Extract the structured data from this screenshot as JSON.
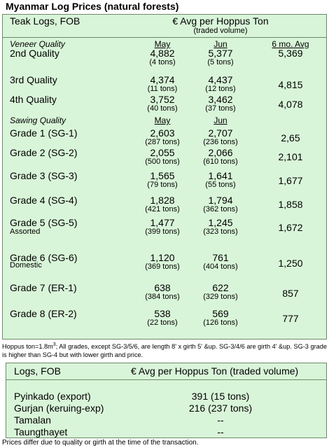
{
  "title": "Myanmar Log Prices (natural forests)",
  "teak": {
    "header": {
      "label": "Teak Logs, FOB",
      "unit": "€ Avg per Hoppus Ton",
      "unit_note": "(traded volume)"
    },
    "sections": [
      {
        "label": "Veneer Quality",
        "col_may": "May",
        "col_jun": "Jun",
        "col_avg": "6 mo. Avg",
        "rows": [
          {
            "name": "2nd Quality",
            "may": "4,882",
            "may_vol": "(4 tons)",
            "jun": "5,377",
            "jun_vol": "(5 tons)",
            "avg": "5,369"
          },
          {
            "name": "3rd Quality",
            "may": "4,374",
            "may_vol": "(11 tons)",
            "jun": "4,437",
            "jun_vol": "(12 tons)",
            "avg": "4,815"
          },
          {
            "name": "4th Quality",
            "may": "3,752",
            "may_vol": "(40 tons)",
            "jun": "3,462",
            "jun_vol": "(37 tons)",
            "avg": "4,078"
          }
        ]
      },
      {
        "label": "Sawing Quality",
        "col_may": "May",
        "col_jun": "Jun",
        "rows": [
          {
            "name": "Grade 1 (SG-1)",
            "may": "2,603",
            "may_vol": "(287 tons)",
            "jun": "2,707",
            "jun_vol": "(236 tons)",
            "avg": "2,65"
          },
          {
            "name": "Grade 2 (SG-2)",
            "may": "2,055",
            "may_vol": "(500 tons)",
            "jun": "2,066",
            "jun_vol": "(610 tons)",
            "avg": "2,101"
          },
          {
            "name": "Grade 3 (SG-3)",
            "may": "1,565",
            "may_vol": "(79 tons)",
            "jun": "1,641",
            "jun_vol": "(55 tons)",
            "avg": "1,677"
          },
          {
            "name": "Grade 4 (SG-4)",
            "may": "1,828",
            "may_vol": "(421 tons)",
            "jun": "1,794",
            "jun_vol": "(362 tons)",
            "avg": "1,858"
          },
          {
            "name": "Grade 5 (SG-5)",
            "sub": "Assorted",
            "may": "1,477",
            "may_vol": "(399 tons)",
            "jun": "1,245",
            "jun_vol": "(323 tons)",
            "avg": "1,672"
          },
          {
            "name": "Grade 6 (SG-6)",
            "sub": "Domestic",
            "may": "1,120",
            "may_vol": "(369 tons)",
            "jun": "761",
            "jun_vol": "(404 tons)",
            "avg": "1,250"
          },
          {
            "name": "Grade 7 (ER-1)",
            "may": "638",
            "may_vol": "(384 tons)",
            "jun": "622",
            "jun_vol": "(329 tons)",
            "avg": "857"
          },
          {
            "name": "Grade 8 (ER-2)",
            "may": "538",
            "may_vol": "(22 tons)",
            "jun": "569",
            "jun_vol": "(126 tons)",
            "avg": "777"
          }
        ]
      }
    ]
  },
  "note": {
    "before": "Hoppus ton=1.8m",
    "sup": "3",
    "after": "; All grades, except SG-3/5/6, are length 8' x girth 5' &up. SG-3/4/6 are girth 4' &up. SG-3 grade is higher than SG-4 but with lower girth and price."
  },
  "other": {
    "header": {
      "label": "Logs, FOB",
      "unit": "€ Avg per Hoppus Ton (traded volume)"
    },
    "rows": [
      {
        "name": "Pyinkado (export)",
        "value": "391 (15 tons)"
      },
      {
        "name": "Gurjan (keruing-exp)",
        "value": "216 (237 tons)"
      },
      {
        "name": "Tamalan",
        "value": "--"
      },
      {
        "name": "Taungthayet",
        "value": "--"
      }
    ]
  },
  "footer": "Prices differ due to quality or girth at the time of the transaction."
}
